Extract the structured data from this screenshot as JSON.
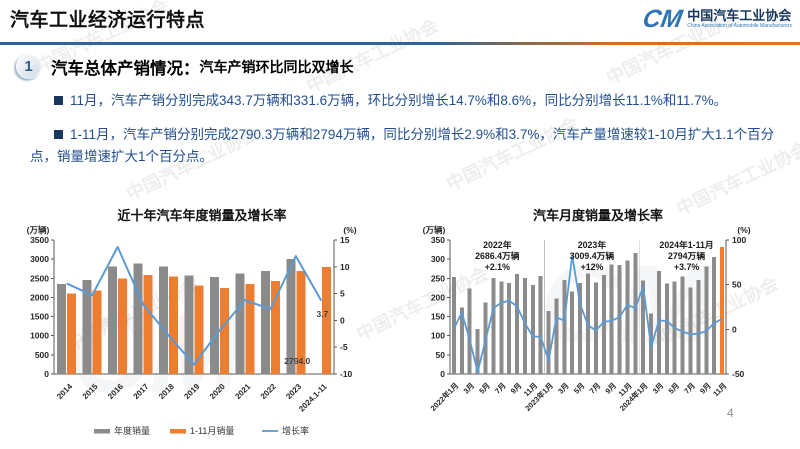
{
  "page": {
    "number": "4"
  },
  "header": {
    "title": "汽车工业经济运行特点",
    "logo": {
      "mark": "CM",
      "org_cn": "中国汽车工业协会",
      "org_en": "China Association of Automobile Manufacturers"
    }
  },
  "section": {
    "badge": "1",
    "heading_main": "汽车总体产销情况：",
    "heading_sub": "汽车产销环比同比双增长"
  },
  "bullets": [
    "11月，汽车产销分别完成343.7万辆和331.6万辆，环比分别增长14.7%和8.6%，同比分别增长11.1%和11.7%。",
    "1-11月，汽车产销分别完成2790.3万辆和2794万辆，同比分别增长2.9%和3.7%，汽车产量增速较1-10月扩大1.1个百分点，销量增速扩大1个百分点。"
  ],
  "watermark": "中国汽车工业协会",
  "colors": {
    "divider_blue": "#31639C",
    "divider_orange": "#D2702A",
    "bar_gray": "#8B8B8B",
    "bar_orange": "#ED7D31",
    "line_blue": "#5B9BD5",
    "text_navy": "#234F91",
    "logo_blue": "#2E74B5"
  },
  "chart_data": [
    {
      "type": "bar",
      "title": "近十年汽车年度销量及增长率",
      "categories": [
        "2014",
        "2015",
        "2016",
        "2017",
        "2018",
        "2019",
        "2020",
        "2021",
        "2022",
        "2023",
        "2024.1-11"
      ],
      "series": [
        {
          "name": "年度销量",
          "kind": "bar",
          "color": "#8B8B8B",
          "values": [
            2349,
            2460,
            2803,
            2888,
            2808,
            2577,
            2531,
            2628,
            2686,
            3009,
            null
          ]
        },
        {
          "name": "1-11月销量",
          "kind": "bar",
          "color": "#ED7D31",
          "values": [
            2108,
            2179,
            2495,
            2584,
            2542,
            2311,
            2247,
            2349,
            2430,
            2694,
            2794
          ]
        },
        {
          "name": "增长率",
          "kind": "line",
          "color": "#5B9BD5",
          "axis": "right",
          "values": [
            6.9,
            4.7,
            13.7,
            3.0,
            -2.8,
            -8.2,
            -1.9,
            3.8,
            2.1,
            12.0,
            3.7
          ]
        }
      ],
      "left_axis": {
        "unit": "(万辆)",
        "min": 0,
        "max": 3500,
        "step": 500
      },
      "right_axis": {
        "unit": "(%)",
        "min": -10,
        "max": 15,
        "step": 5
      },
      "point_labels": [
        {
          "series": "增长率",
          "index": 10,
          "text": "3.7"
        },
        {
          "series": "1-11月销量",
          "index": 10,
          "text": "2794.0"
        }
      ],
      "grid": false,
      "legend_position": "bottom"
    },
    {
      "type": "bar",
      "title": "汽车月度销量及增长率",
      "categories": [
        "2022年1月",
        "2月",
        "3月",
        "4月",
        "5月",
        "6月",
        "7月",
        "8月",
        "9月",
        "10月",
        "11月",
        "12月",
        "2023年1月",
        "2月",
        "3月",
        "4月",
        "5月",
        "6月",
        "7月",
        "8月",
        "9月",
        "10月",
        "11月",
        "12月",
        "2024年1月",
        "2月",
        "3月",
        "4月",
        "5月",
        "6月",
        "7月",
        "8月",
        "9月",
        "10月",
        "11月"
      ],
      "x_tick_every": 2,
      "series": [
        {
          "name": "月度销量",
          "kind": "bar",
          "color": "#8B8B8B",
          "last_bar_color": "#ED7D31",
          "values": [
            253.1,
            173.7,
            223.4,
            118.1,
            186.2,
            250.2,
            242.0,
            238.3,
            261.0,
            250.5,
            232.8,
            255.6,
            164.9,
            197.6,
            245.1,
            215.9,
            238.2,
            262.2,
            238.8,
            258.2,
            285.8,
            285.3,
            297.0,
            315.6,
            243.9,
            158.4,
            269.4,
            235.9,
            241.7,
            255.2,
            226.2,
            245.3,
            280.9,
            305.3,
            331.6
          ]
        },
        {
          "name": "增长率",
          "kind": "line",
          "color": "#5B9BD5",
          "axis": "right",
          "values": [
            0.9,
            18.7,
            -11.7,
            -47.6,
            -12.6,
            23.8,
            29.7,
            32.1,
            25.7,
            6.9,
            -7.9,
            -8.4,
            -35.0,
            13.5,
            9.7,
            82.7,
            27.9,
            4.8,
            -1.4,
            8.4,
            9.5,
            13.8,
            27.4,
            23.5,
            47.9,
            -19.9,
            9.9,
            9.3,
            1.5,
            -2.7,
            -5.2,
            -5.0,
            -1.7,
            7.0,
            11.7
          ]
        }
      ],
      "left_axis": {
        "unit": "(万辆)",
        "min": 0,
        "max": 350,
        "step": 50
      },
      "right_axis": {
        "unit": "(%)",
        "min": -50,
        "max": 100,
        "step": 50
      },
      "annotations": [
        {
          "lines": [
            "2022年",
            "2686.4万辆",
            "+2.1%"
          ],
          "center_index": 5.5
        },
        {
          "lines": [
            "2023年",
            "3009.4万辆",
            "+12%"
          ],
          "center_index": 17.5
        },
        {
          "lines": [
            "2024年1-11月",
            "2794万辆",
            "+3.7%"
          ],
          "center_index": 29.5
        }
      ],
      "year_separators_after_index": [
        11,
        23
      ],
      "grid": false,
      "legend_position": "none"
    }
  ]
}
